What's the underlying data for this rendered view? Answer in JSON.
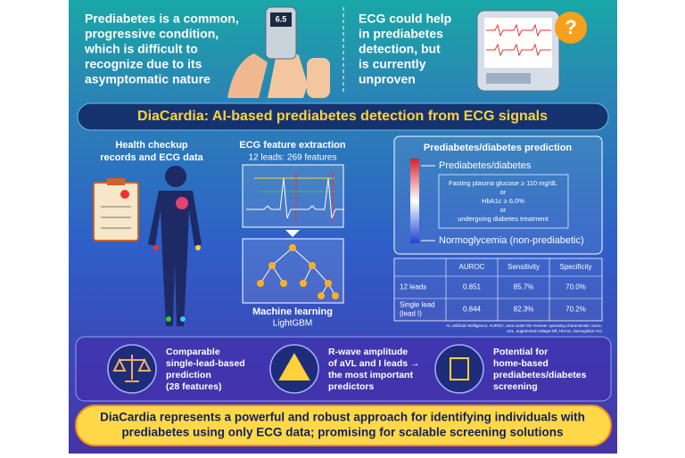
{
  "top": {
    "left_text": [
      "Prediabetes is a common,",
      "progressive condition,",
      "which is difficult to",
      "recognize due to its",
      "asymptomatic nature"
    ],
    "glucometer_reading": "6.5",
    "right_text": [
      "ECG could help",
      "in prediabetes",
      "detection, but",
      "is currently",
      "unproven"
    ],
    "question_mark": "?"
  },
  "title": "DiaCardia: AI-based prediabetes detection from ECG signals",
  "input": {
    "label": [
      "Health checkup",
      "records and ECG data"
    ]
  },
  "feature_extraction": {
    "title": "ECG feature extraction",
    "subtitle": "12 leads: 269 features"
  },
  "machine_learning": {
    "title": "Machine learning",
    "subtitle": "LightGBM"
  },
  "prediction": {
    "title": "Prediabetes/diabetes prediction",
    "positive": "Prediabetes/diabetes",
    "criteria": [
      "Fasting plasma glucose ≥ 110 mg/dL",
      "or",
      "HbA1c ≥ 6.0%",
      "or",
      "undergoing diabetes treatment"
    ],
    "negative": "Normoglycemia (non-prediabetic)"
  },
  "table": {
    "header": [
      "AUROC",
      "Sensitivity",
      "Specificity"
    ],
    "rows": [
      {
        "label": [
          "12 leads"
        ],
        "cells": [
          "0.851",
          "85.7%",
          "70.0%"
        ]
      },
      {
        "label": [
          "Single lead",
          "(lead I)"
        ],
        "cells": [
          "0.844",
          "82.3%",
          "70.2%"
        ]
      }
    ]
  },
  "footnote": [
    "AI, artificial intelligence; AUROC, area under the receiver operating characteristic curve;",
    "aVL, augmented voltage left; HbA1c, hemoglobin A1c"
  ],
  "findings": [
    {
      "lines": [
        "Comparable",
        "single-lead-based",
        "prediction",
        "(28 features)"
      ]
    },
    {
      "lines": [
        "R-wave amplitude",
        "of aVL and I leads →",
        "the most important",
        "predictors"
      ]
    },
    {
      "lines": [
        "Potential for",
        "home-based",
        "prediabetes/diabetes",
        "screening"
      ]
    }
  ],
  "conclusion": [
    "DiaCardia represents a powerful and robust approach for identifying individuals with",
    "prediabetes using only ECG data; promising for scalable screening solutions"
  ]
}
